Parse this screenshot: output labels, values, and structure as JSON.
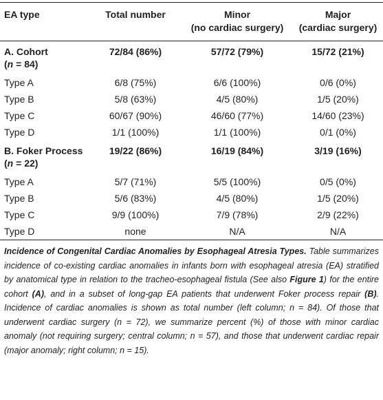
{
  "table": {
    "header": [
      [
        "EA type"
      ],
      [
        "Total number"
      ],
      [
        "Minor",
        "(no cardiac surgery)"
      ],
      [
        "Major",
        "(cardiac surgery)"
      ]
    ],
    "sections": [
      {
        "label": [
          "A. Cohort",
          "(",
          "n",
          " = 84)"
        ],
        "values": [
          "72/84 (86%)",
          "57/72 (79%)",
          "15/72 (21%)"
        ],
        "rows": [
          [
            "Type A",
            "6/8 (75%)",
            "6/6 (100%)",
            "0/6 (0%)"
          ],
          [
            "Type B",
            "5/8 (63%)",
            "4/5 (80%)",
            "1/5 (20%)"
          ],
          [
            "Type C",
            "60/67 (90%)",
            "46/60 (77%)",
            "14/60 (23%)"
          ],
          [
            "Type D",
            "1/1 (100%)",
            "1/1 (100%)",
            "0/1 (0%)"
          ]
        ]
      },
      {
        "label": [
          "B. Foker Process",
          "(",
          "n",
          " = 22)"
        ],
        "values": [
          "19/22 (86%)",
          "16/19 (84%)",
          "3/19 (16%)"
        ],
        "rows": [
          [
            "Type A",
            "5/7 (71%)",
            "5/5 (100%)",
            "0/5 (0%)"
          ],
          [
            "Type B",
            "5/6 (83%)",
            "4/5 (80%)",
            "1/5 (20%)"
          ],
          [
            "Type C",
            "9/9 (100%)",
            "7/9 (78%)",
            "2/9 (22%)"
          ],
          [
            "Type D",
            "none",
            "N/A",
            "N/A"
          ]
        ]
      }
    ]
  },
  "caption": [
    "Incidence of Congenital Cardiac Anomalies by Esophageal Atresia Types.",
    " Table summarizes incidence of co-existing cardiac anomalies in infants born with esophageal atresia (EA) stratified by anatomical type in relation to the tracheo-esophageal fistula (See also ",
    "Figure 1",
    ") for the entire cohort ",
    "(A)",
    ", and in a subset of long-gap EA patients that underwent Foker process repair ",
    "(B)",
    ". Incidence of cardiac anomalies is shown as total number (left column; n = 84). Of those that underwent cardiac surgery (n = 72), we summarize percent (%) of those with minor cardiac anomaly (not requiring surgery; central column; n = 57), and those that underwent cardiac repair (major anomaly; right column; n = 15)."
  ]
}
